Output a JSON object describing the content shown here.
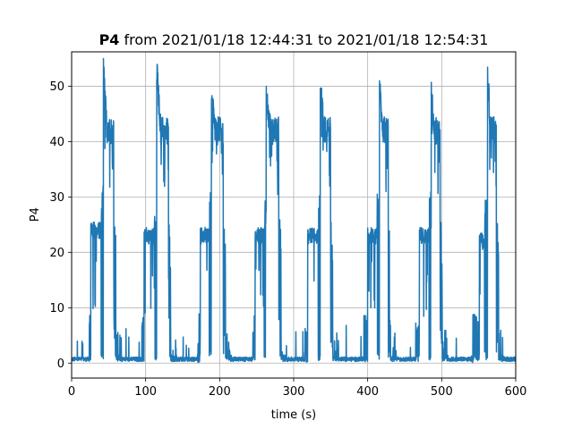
{
  "chart_data": {
    "type": "line",
    "title_bold": "P4",
    "title_rest": " from 2021/01/18 12:44:31 to 2021/01/18 12:54:31",
    "xlabel": "time (s)",
    "ylabel": "P4",
    "xlim": [
      0,
      600
    ],
    "ylim": [
      -2.7,
      56.2
    ],
    "xticks": [
      0,
      100,
      200,
      300,
      400,
      500,
      600
    ],
    "yticks": [
      0,
      10,
      20,
      30,
      40,
      50
    ],
    "grid": true,
    "line_color": "#1f77b4",
    "series": [
      {
        "cycles": [
          {
            "start": 24,
            "s1": 26,
            "low_end": 40,
            "s2": 43,
            "high_end": 57,
            "s3": 60,
            "mid": 24,
            "high": 42,
            "peak": 53
          },
          {
            "start": 95,
            "s1": 98,
            "low_end": 112,
            "s2": 115,
            "high_end": 131,
            "s3": 134,
            "mid": 23,
            "high": 42,
            "peak": 53
          },
          {
            "start": 170,
            "s1": 174,
            "low_end": 186,
            "s2": 189,
            "high_end": 205,
            "s3": 208,
            "mid": 23,
            "high": 42,
            "peak": 48
          },
          {
            "start": 245,
            "s1": 248,
            "low_end": 260,
            "s2": 263,
            "high_end": 280,
            "s3": 283,
            "mid": 23,
            "high": 42,
            "peak": 48
          },
          {
            "start": 315,
            "s1": 319,
            "low_end": 333,
            "s2": 336,
            "high_end": 350,
            "s3": 353,
            "mid": 23,
            "high": 42,
            "peak": 51
          },
          {
            "start": 395,
            "s1": 400,
            "low_end": 413,
            "s2": 416,
            "high_end": 428,
            "s3": 431,
            "mid": 23,
            "high": 42,
            "peak": 50
          },
          {
            "start": 465,
            "s1": 470,
            "low_end": 483,
            "s2": 486,
            "high_end": 498,
            "s3": 501,
            "mid": 23,
            "high": 42,
            "peak": 49
          },
          {
            "start": 540,
            "s1": 551,
            "low_end": 558,
            "s2": 562,
            "high_end": 574,
            "s3": 577,
            "mid": 22,
            "high": 42,
            "peak": 53
          }
        ],
        "baseline": 0.3
      }
    ]
  }
}
